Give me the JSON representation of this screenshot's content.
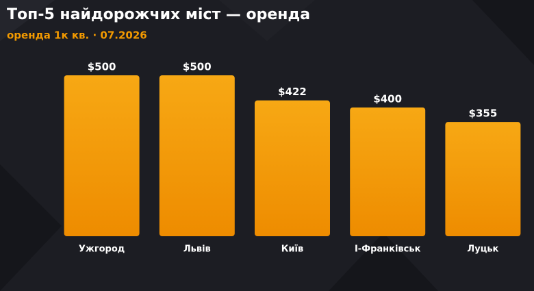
{
  "chart_data": {
    "type": "bar",
    "title": "Топ-5 найдорожчих міст — оренда",
    "subtitle": "оренда 1к кв. · 07.2026",
    "categories": [
      "Ужгород",
      "Львів",
      "Київ",
      "І-Франківськ",
      "Луцьк"
    ],
    "values": [
      500,
      500,
      422,
      400,
      355
    ],
    "value_labels": [
      "$500",
      "$500",
      "$422",
      "$400",
      "$355"
    ],
    "color": "#f39a00"
  }
}
